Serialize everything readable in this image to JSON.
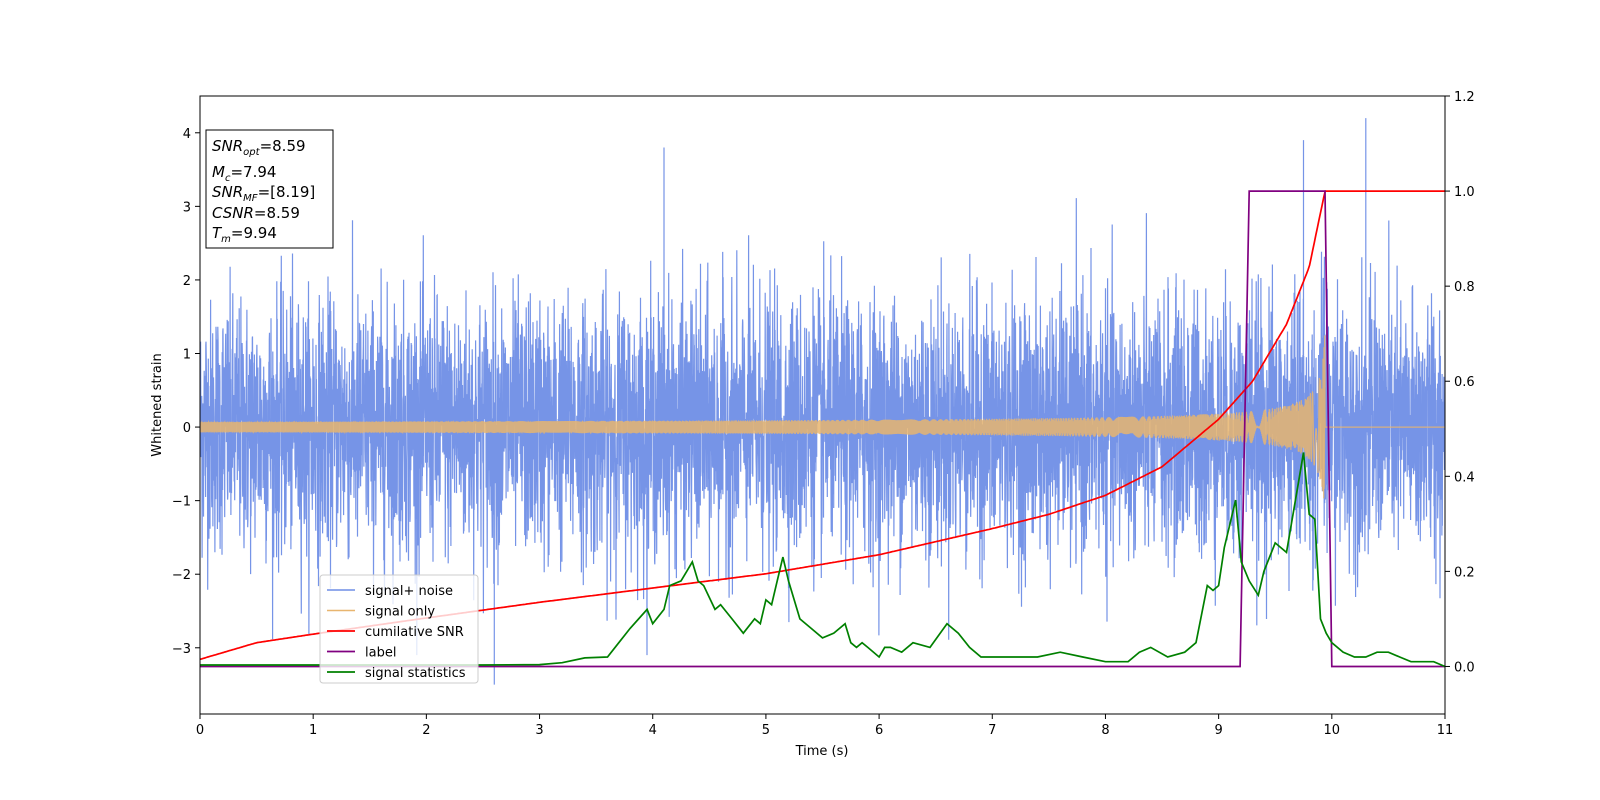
{
  "chart_data": {
    "type": "line",
    "xlabel": "Time (s)",
    "ylabel": "Whitened strain",
    "xlim": [
      0,
      11
    ],
    "ylim": [
      -3.9,
      4.5
    ],
    "y2lim": [
      -0.1,
      1.2
    ],
    "x_ticks": [
      "0",
      "1",
      "2",
      "3",
      "4",
      "5",
      "6",
      "7",
      "8",
      "9",
      "10",
      "11"
    ],
    "y_ticks": [
      "−3",
      "−2",
      "−1",
      "0",
      "1",
      "2",
      "3",
      "4"
    ],
    "y2_ticks": [
      "0.0",
      "0.2",
      "0.4",
      "0.6",
      "0.8",
      "1.0",
      "1.2"
    ],
    "grid": false,
    "legend_position": "lower-left",
    "info_box": [
      {
        "name": "SNR",
        "sub": "opt",
        "value": "=8.59"
      },
      {
        "name": "M",
        "sub": "c",
        "value": "=7.94"
      },
      {
        "name": "SNR",
        "sub": "MF",
        "value": "=[8.19]"
      },
      {
        "name": "CSNR",
        "sub": "",
        "value": "=8.59"
      },
      {
        "name": "T",
        "sub": "m",
        "value": "=9.94"
      }
    ],
    "series": [
      {
        "name": "signal+ noise",
        "color": "#6f8ee6",
        "axis": "left",
        "kind": "noise",
        "noise_sigma": 0.85,
        "approx_extremes": [
          [
            2.6,
            -3.5
          ],
          [
            4.1,
            3.8
          ],
          [
            10.3,
            4.2
          ],
          [
            9.75,
            3.9
          ]
        ]
      },
      {
        "name": "signal only",
        "color": "#e8b56f",
        "axis": "left",
        "kind": "chirp",
        "merger_time": 9.94,
        "peak_amplitude": 1.3
      },
      {
        "name": "cumilative SNR",
        "color": "#ff0000",
        "axis": "right",
        "x": [
          0,
          0.5,
          1,
          2,
          3,
          4,
          5,
          6,
          7,
          7.5,
          8,
          8.5,
          9,
          9.3,
          9.6,
          9.8,
          9.94,
          11
        ],
        "values": [
          0.015,
          0.05,
          0.068,
          0.102,
          0.135,
          0.165,
          0.195,
          0.235,
          0.29,
          0.32,
          0.36,
          0.42,
          0.52,
          0.6,
          0.72,
          0.84,
          1.0,
          1.0
        ]
      },
      {
        "name": "label",
        "color": "#800080",
        "axis": "right",
        "x": [
          0,
          9.19,
          9.27,
          9.94,
          10.0,
          11
        ],
        "values": [
          0.0,
          0.0,
          1.0,
          1.0,
          0.0,
          0.0
        ]
      },
      {
        "name": "signal statistics",
        "color": "#008000",
        "axis": "right",
        "x": [
          0,
          0.5,
          1,
          1.5,
          2,
          2.5,
          3,
          3.2,
          3.4,
          3.6,
          3.7,
          3.8,
          3.95,
          4.0,
          4.1,
          4.15,
          4.25,
          4.3,
          4.35,
          4.4,
          4.45,
          4.55,
          4.6,
          4.7,
          4.8,
          4.9,
          4.95,
          5.0,
          5.05,
          5.1,
          5.15,
          5.2,
          5.3,
          5.4,
          5.5,
          5.6,
          5.7,
          5.75,
          5.8,
          5.85,
          5.9,
          6.0,
          6.05,
          6.1,
          6.2,
          6.3,
          6.45,
          6.6,
          6.7,
          6.8,
          6.9,
          7.0,
          7.2,
          7.4,
          7.6,
          7.8,
          8.0,
          8.2,
          8.3,
          8.4,
          8.55,
          8.7,
          8.8,
          8.9,
          8.95,
          9.0,
          9.05,
          9.1,
          9.15,
          9.2,
          9.27,
          9.35,
          9.4,
          9.5,
          9.6,
          9.7,
          9.75,
          9.8,
          9.85,
          9.9,
          9.95,
          10.0,
          10.1,
          10.2,
          10.3,
          10.4,
          10.5,
          10.6,
          10.7,
          10.8,
          10.9,
          11.0
        ],
        "values": [
          0.003,
          0.003,
          0.003,
          0.003,
          0.003,
          0.003,
          0.004,
          0.008,
          0.018,
          0.02,
          0.05,
          0.08,
          0.12,
          0.09,
          0.12,
          0.17,
          0.18,
          0.2,
          0.22,
          0.18,
          0.17,
          0.12,
          0.13,
          0.1,
          0.07,
          0.1,
          0.09,
          0.14,
          0.13,
          0.18,
          0.23,
          0.18,
          0.1,
          0.08,
          0.06,
          0.07,
          0.09,
          0.05,
          0.04,
          0.05,
          0.04,
          0.02,
          0.04,
          0.04,
          0.03,
          0.05,
          0.04,
          0.09,
          0.07,
          0.04,
          0.02,
          0.02,
          0.02,
          0.02,
          0.03,
          0.02,
          0.01,
          0.01,
          0.03,
          0.04,
          0.02,
          0.03,
          0.05,
          0.17,
          0.16,
          0.17,
          0.25,
          0.3,
          0.35,
          0.22,
          0.18,
          0.15,
          0.2,
          0.26,
          0.24,
          0.38,
          0.45,
          0.32,
          0.31,
          0.1,
          0.07,
          0.05,
          0.03,
          0.02,
          0.02,
          0.03,
          0.03,
          0.02,
          0.01,
          0.01,
          0.01,
          0.0
        ]
      }
    ]
  }
}
